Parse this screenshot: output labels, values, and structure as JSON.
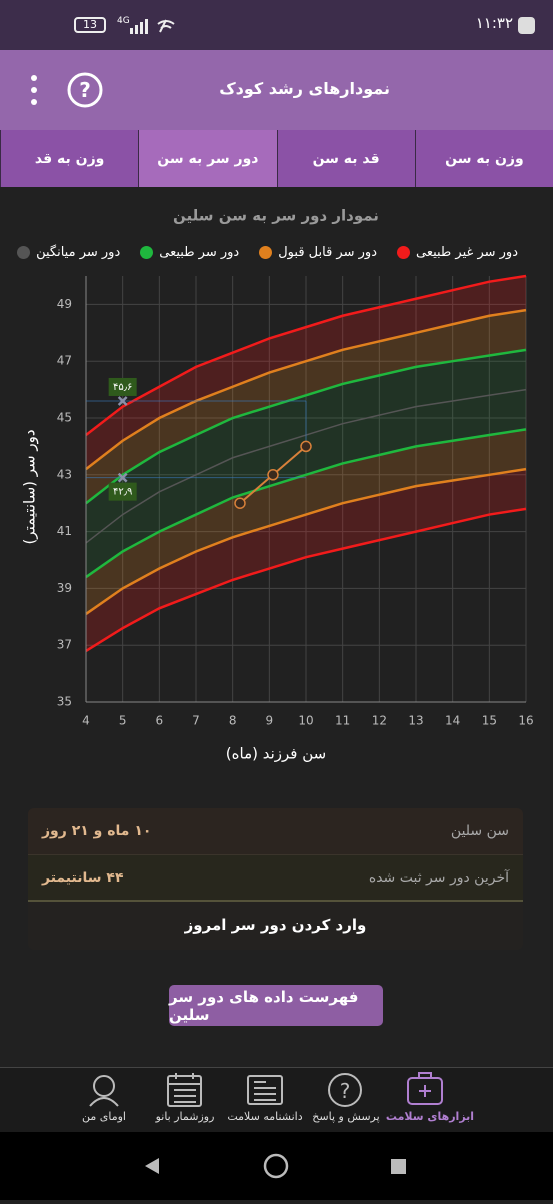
{
  "status_bar": {
    "time": "۱۱:۳۲",
    "battery": "13",
    "network": "4G"
  },
  "header": {
    "title": "نمودارهای رشد کودک"
  },
  "tabs": [
    "وزن به سن",
    "قد به سن",
    "دور سر به سن",
    "وزن به قد"
  ],
  "chart_data": {
    "type": "line",
    "title": "نمودار دور سر به سن سلین",
    "x_label": "سن فرزند (ماه)",
    "y_label": "دور سر (سانتیمتر)",
    "x": [
      4,
      5,
      6,
      7,
      8,
      9,
      10,
      11,
      12,
      13,
      14,
      15,
      16
    ],
    "xlim": [
      4,
      16
    ],
    "xticks": [
      4,
      5,
      6,
      7,
      8,
      9,
      10,
      11,
      12,
      13,
      14,
      15,
      16
    ],
    "ylim": [
      35,
      50
    ],
    "yticks": [
      35,
      37,
      39,
      41,
      43,
      45,
      47,
      49
    ],
    "grid": true,
    "series": [
      {
        "name": "دور سر غیر طبیعی",
        "color": "#f21b1b",
        "lines": [
          [
            44.4,
            45.4,
            46.1,
            46.8,
            47.3,
            47.8,
            48.2,
            48.6,
            48.9,
            49.2,
            49.5,
            49.8,
            50.0
          ],
          [
            36.8,
            37.6,
            38.3,
            38.8,
            39.3,
            39.7,
            40.1,
            40.4,
            40.7,
            41.0,
            41.3,
            41.6,
            41.8
          ]
        ]
      },
      {
        "name": "دور سر قابل قبول",
        "color": "#e0801e",
        "lines": [
          [
            43.2,
            44.2,
            45.0,
            45.6,
            46.1,
            46.6,
            47.0,
            47.4,
            47.7,
            48.0,
            48.3,
            48.6,
            48.8
          ],
          [
            38.1,
            39.0,
            39.7,
            40.3,
            40.8,
            41.2,
            41.6,
            42.0,
            42.3,
            42.6,
            42.8,
            43.0,
            43.2
          ]
        ]
      },
      {
        "name": "دور سر طبیعی",
        "color": "#1fb83e",
        "lines": [
          [
            42.0,
            43.0,
            43.8,
            44.4,
            45.0,
            45.4,
            45.8,
            46.2,
            46.5,
            46.8,
            47.0,
            47.2,
            47.4
          ],
          [
            39.4,
            40.3,
            41.0,
            41.6,
            42.2,
            42.6,
            43.0,
            43.4,
            43.7,
            44.0,
            44.2,
            44.4,
            44.6
          ]
        ]
      },
      {
        "name": "دور سر میانگین",
        "color": "#555555",
        "lines": [
          [
            40.6,
            41.6,
            42.4,
            43.0,
            43.6,
            44.0,
            44.4,
            44.8,
            45.1,
            45.4,
            45.6,
            45.8,
            46.0
          ]
        ]
      }
    ],
    "measurements": {
      "x": [
        8.2,
        9.1,
        10
      ],
      "values": [
        42,
        43,
        44
      ],
      "color": "#d7803a"
    },
    "markers": {
      "x": 5,
      "values": [
        45.6,
        42.9
      ],
      "value_labels": [
        "۴۵٫۶",
        "۴۲٫۹"
      ]
    }
  },
  "info_card": {
    "rows": [
      {
        "label": "سن سلین",
        "value": "۱۰ ماه و ۲۱ روز"
      },
      {
        "label": "آخرین دور سر ثبت شده",
        "value": "۴۴ سانتیمتر"
      }
    ],
    "action": "وارد کردن دور سر امروز"
  },
  "list_button": "فهرست داده های دور سر سلین",
  "bottom_nav": [
    "ابزارهای سلامت",
    "پرسش و پاسخ",
    "دانشنامه سلامت",
    "روزشمار بانو",
    "اومای من"
  ]
}
